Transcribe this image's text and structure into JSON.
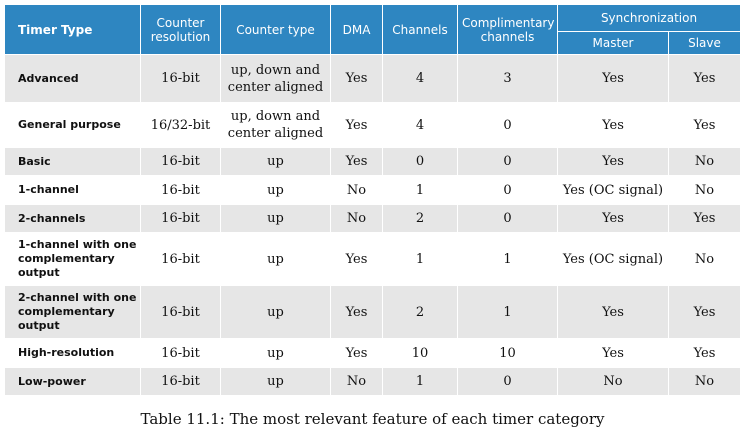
{
  "headers": {
    "timer_type": "Timer Type",
    "counter_resolution": "Counter resolution",
    "counter_type": "Counter type",
    "dma": "DMA",
    "channels": "Channels",
    "complimentary_channels": "Complimentary channels",
    "synchronization": "Synchronization",
    "master": "Master",
    "slave": "Slave"
  },
  "rows": [
    {
      "type": "Advanced",
      "resolution": "16-bit",
      "counter_type": "up, down and center aligned",
      "dma": "Yes",
      "channels": "4",
      "complimentary": "3",
      "master": "Yes",
      "slave": "Yes"
    },
    {
      "type": "General purpose",
      "resolution": "16/32-bit",
      "counter_type": "up, down and center aligned",
      "dma": "Yes",
      "channels": "4",
      "complimentary": "0",
      "master": "Yes",
      "slave": "Yes"
    },
    {
      "type": "Basic",
      "resolution": "16-bit",
      "counter_type": "up",
      "dma": "Yes",
      "channels": "0",
      "complimentary": "0",
      "master": "Yes",
      "slave": "No"
    },
    {
      "type": "1-channel",
      "resolution": "16-bit",
      "counter_type": "up",
      "dma": "No",
      "channels": "1",
      "complimentary": "0",
      "master": "Yes (OC signal)",
      "slave": "No"
    },
    {
      "type": "2-channels",
      "resolution": "16-bit",
      "counter_type": "up",
      "dma": "No",
      "channels": "2",
      "complimentary": "0",
      "master": "Yes",
      "slave": "Yes"
    },
    {
      "type": "1-channel with one complementary output",
      "resolution": "16-bit",
      "counter_type": "up",
      "dma": "Yes",
      "channels": "1",
      "complimentary": "1",
      "master": "Yes (OC signal)",
      "slave": "No"
    },
    {
      "type": "2-channel with one complementary output",
      "resolution": "16-bit",
      "counter_type": "up",
      "dma": "Yes",
      "channels": "2",
      "complimentary": "1",
      "master": "Yes",
      "slave": "Yes"
    },
    {
      "type": "High-resolution",
      "resolution": "16-bit",
      "counter_type": "up",
      "dma": "Yes",
      "channels": "10",
      "complimentary": "10",
      "master": "Yes",
      "slave": "Yes"
    },
    {
      "type": "Low-power",
      "resolution": "16-bit",
      "counter_type": "up",
      "dma": "No",
      "channels": "1",
      "complimentary": "0",
      "master": "No",
      "slave": "No"
    }
  ],
  "caption": "Table 11.1: The most relevant feature of each timer category",
  "colors": {
    "header_bg": "#2e86c1",
    "row_shade": "#e6e6e6",
    "row_plain": "#ffffff"
  }
}
